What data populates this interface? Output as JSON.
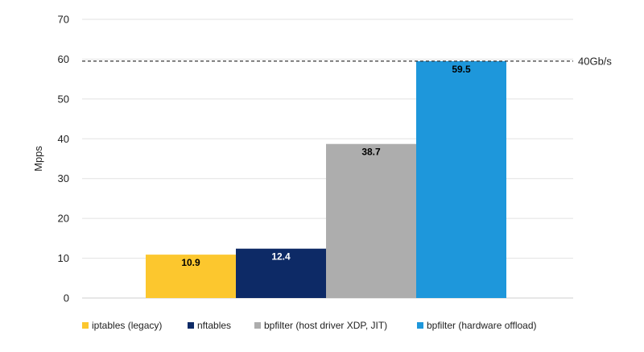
{
  "chart_data": {
    "type": "bar",
    "title": "",
    "xlabel": "",
    "ylabel": "Mpps",
    "ylim": [
      0,
      70
    ],
    "yticks": [
      0,
      10,
      20,
      30,
      40,
      50,
      60,
      70
    ],
    "grid": true,
    "legend_position": "bottom",
    "series": [
      {
        "name": "iptables (legacy)",
        "value": 10.9,
        "label": "10.9",
        "color": "#FCC72E",
        "label_color": "#000000"
      },
      {
        "name": "nftables",
        "value": 12.4,
        "label": "12.4",
        "color": "#0D2A66",
        "label_color": "#ffffff"
      },
      {
        "name": "bpfilter (host driver XDP, JIT)",
        "value": 38.7,
        "label": "38.7",
        "color": "#ADADAD",
        "label_color": "#000000"
      },
      {
        "name": "bpfilter (hardware offload)",
        "value": 59.5,
        "label": "59.5",
        "color": "#1E97DB",
        "label_color": "#000000"
      }
    ],
    "reference_line": {
      "value": 59.5,
      "label": "40Gb/s",
      "style": "dashed"
    }
  }
}
